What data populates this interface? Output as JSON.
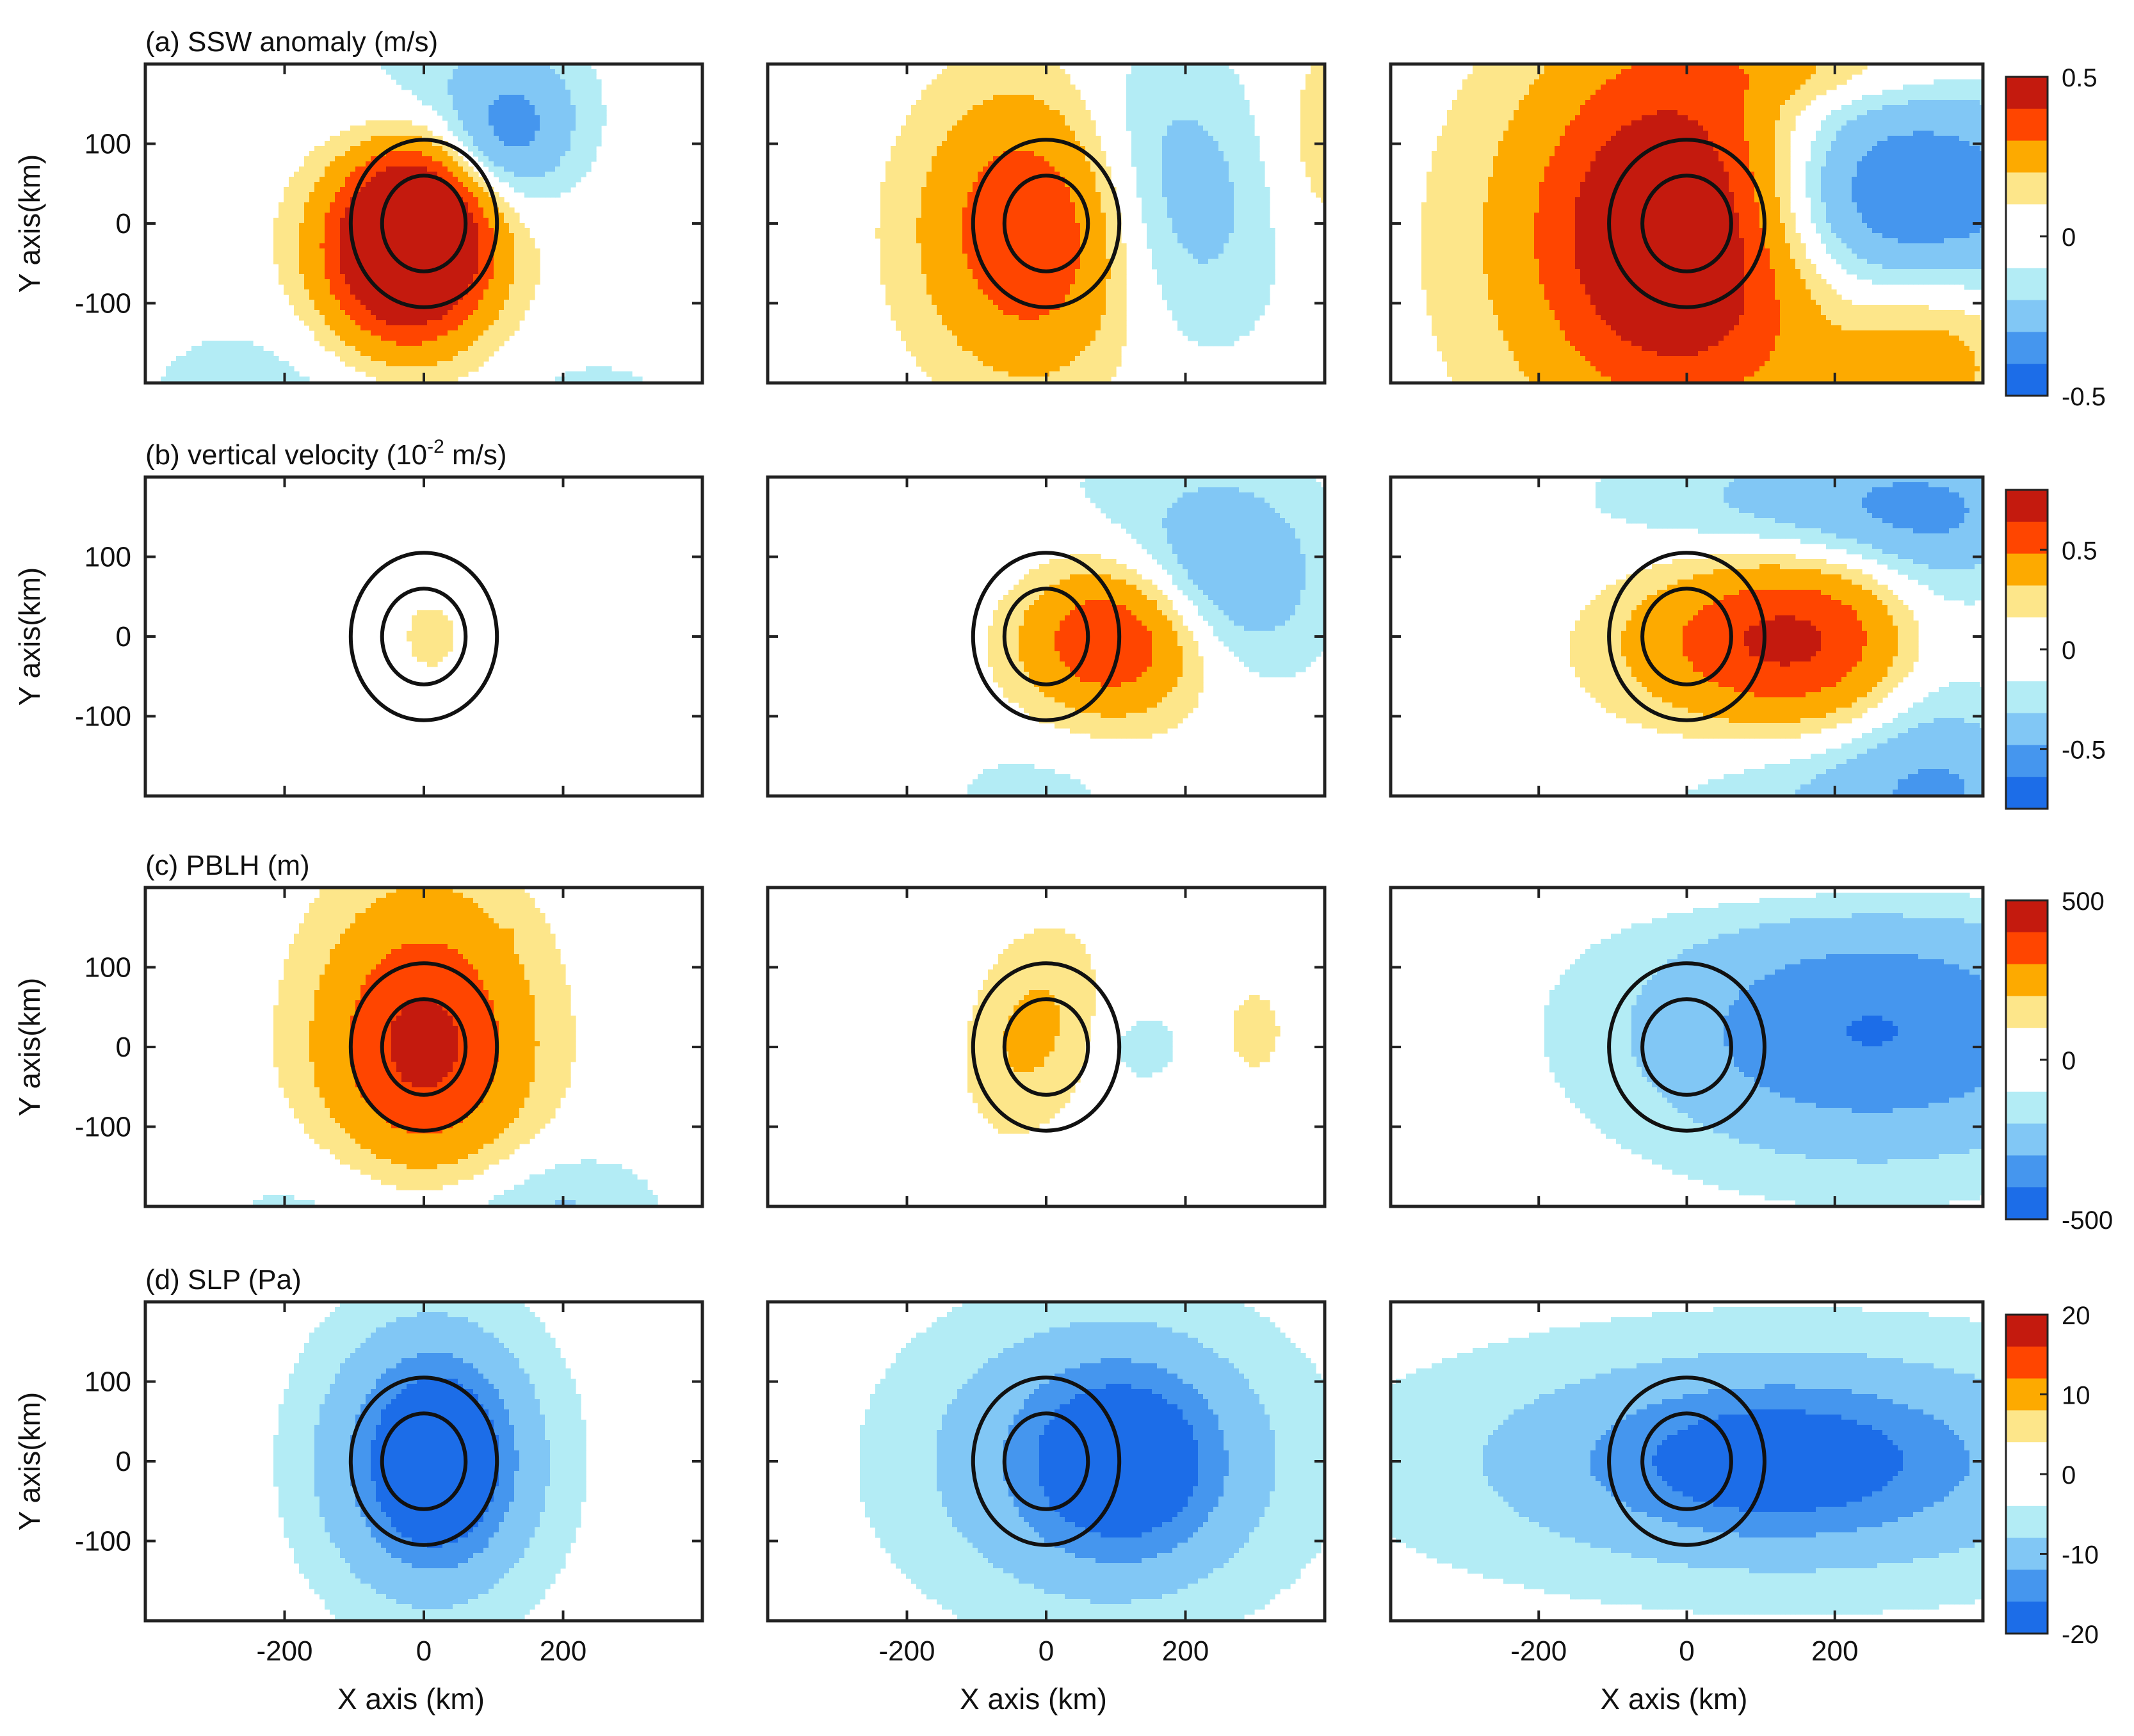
{
  "rows": [
    {
      "title": "(a) SSW anomaly (m/s)",
      "title_sup": "",
      "title_post": "",
      "colorbar": {
        "ticks": [
          {
            "label": "0.5",
            "value": 0.5
          },
          {
            "label": "0",
            "value": 0
          },
          {
            "label": "-0.5",
            "value": -0.5
          }
        ],
        "vmin": -0.5,
        "vmax": 0.5
      }
    },
    {
      "title": "(b) vertical velocity (10",
      "title_sup": "-2",
      "title_post": " m/s)",
      "colorbar": {
        "ticks": [
          {
            "label": "0.5",
            "value": 0.5
          },
          {
            "label": "0",
            "value": 0
          },
          {
            "label": "-0.5",
            "value": -0.5
          }
        ],
        "vmin": -0.8,
        "vmax": 0.8
      }
    },
    {
      "title": "(c) PBLH (m)",
      "title_sup": "",
      "title_post": "",
      "colorbar": {
        "ticks": [
          {
            "label": "500",
            "value": 500
          },
          {
            "label": "0",
            "value": 0
          },
          {
            "label": "-500",
            "value": -500
          }
        ],
        "vmin": -500,
        "vmax": 500
      }
    },
    {
      "title": "(d) SLP (Pa)",
      "title_sup": "",
      "title_post": "",
      "colorbar": {
        "ticks": [
          {
            "label": "20",
            "value": 20
          },
          {
            "label": "10",
            "value": 10
          },
          {
            "label": "0",
            "value": 0
          },
          {
            "label": "-10",
            "value": -10
          },
          {
            "label": "-20",
            "value": -20
          }
        ],
        "vmin": -20,
        "vmax": 20
      }
    }
  ],
  "columns": [
    {
      "xlim": [
        -400,
        400
      ],
      "xticks": [
        -200,
        0,
        200
      ]
    },
    {
      "xlim": [
        -400,
        400
      ],
      "xticks": [
        -200,
        0,
        200
      ]
    },
    {
      "xlim": [
        -400,
        400
      ],
      "xticks": [
        -200,
        0,
        200
      ]
    }
  ],
  "axes": {
    "ylabel": "Y axis(km)",
    "xlabel": "X axis (km)",
    "ylim": [
      -200,
      200
    ],
    "yticks": [
      {
        "label": "100",
        "value": 100
      },
      {
        "label": "0",
        "value": 0
      },
      {
        "label": "-100",
        "value": -100
      }
    ],
    "xticks": [
      {
        "label": "-200",
        "value": -200
      },
      {
        "label": "0",
        "value": 0
      },
      {
        "label": "200",
        "value": 200
      }
    ]
  },
  "rings_km": [
    60,
    105
  ],
  "colors": {
    "positive": [
      "#fde68a",
      "#fdaa00",
      "#ff4500",
      "#c41a0e"
    ],
    "negative": [
      "#b3ecf5",
      "#81c7f5",
      "#4596ee",
      "#1c6de8"
    ],
    "outline": "#111111"
  },
  "chart_data": {
    "type": "heatmap",
    "description_units": "fields in km coordinates, storm centre at (0,0)",
    "panels": [
      [
        {
          "blobs": [
            [
              -30,
              -40,
              90,
              95,
              0.42,
              -25
            ],
            [
              -10,
              -10,
              70,
              75,
              0.5,
              -25
            ],
            [
              120,
              110,
              70,
              60,
              -0.25,
              35
            ],
            [
              40,
              150,
              120,
              80,
              -0.12,
              0
            ],
            [
              -200,
              -230,
              160,
              90,
              -0.1,
              0
            ],
            [
              250,
              -230,
              90,
              50,
              -0.08,
              0
            ]
          ]
        },
        {
          "blobs": [
            [
              0,
              0,
              115,
              125,
              0.45,
              -15
            ],
            [
              150,
              40,
              110,
              130,
              -0.28,
              25
            ],
            [
              400,
              100,
              60,
              100,
              0.1,
              0
            ]
          ]
        },
        {
          "blobs": [
            [
              0,
              0,
              130,
              140,
              0.55,
              0
            ],
            [
              -30,
              -40,
              200,
              200,
              0.15,
              0
            ],
            [
              260,
              30,
              170,
              100,
              -0.45,
              0
            ],
            [
              330,
              -150,
              90,
              80,
              0.2,
              0
            ],
            [
              200,
              190,
              150,
              30,
              0.1,
              0
            ]
          ]
        }
      ],
      [
        {
          "blobs": [
            [
              10,
              0,
              35,
              40,
              0.12,
              0
            ],
            [
              130,
              10,
              10,
              20,
              -0.08,
              0
            ]
          ]
        },
        {
          "blobs": [
            [
              100,
              0,
              100,
              70,
              0.7,
              0
            ],
            [
              150,
              100,
              220,
              130,
              -0.12,
              0
            ],
            [
              250,
              70,
              90,
              80,
              -0.35,
              0
            ],
            [
              -20,
              -200,
              100,
              50,
              -0.12,
              0
            ]
          ]
        },
        {
          "blobs": [
            [
              150,
              0,
              160,
              80,
              0.75,
              0
            ],
            [
              160,
              120,
              270,
              130,
              -0.12,
              0
            ],
            [
              250,
              160,
              180,
              50,
              -0.3,
              0
            ],
            [
              330,
              -20,
              80,
              150,
              -0.3,
              0
            ],
            [
              300,
              -200,
              200,
              60,
              -0.3,
              0
            ]
          ]
        }
      ],
      [
        {
          "blobs": [
            [
              0,
              0,
              105,
              130,
              420,
              0
            ],
            [
              -50,
              -220,
              170,
              80,
              -120,
              0
            ],
            [
              200,
              -220,
              100,
              60,
              -120,
              0
            ],
            [
              120,
              140,
              5,
              5,
              80,
              0
            ]
          ]
        },
        {
          "blobs": [
            [
              -20,
              20,
              60,
              90,
              150,
              -20
            ],
            [
              140,
              0,
              40,
              35,
              -90,
              0
            ],
            [
              300,
              20,
              30,
              40,
              90,
              0
            ]
          ]
        },
        {
          "blobs": [
            [
              250,
              20,
              220,
              110,
              -380,
              0
            ],
            [
              200,
              230,
              260,
              50,
              80,
              0
            ]
          ]
        }
      ],
      [
        {
          "blobs": [
            [
              10,
              0,
              110,
              120,
              -16,
              0
            ],
            [
              20,
              0,
              50,
              60,
              -20,
              0
            ]
          ]
        },
        {
          "blobs": [
            [
              80,
              0,
              190,
              130,
              -11,
              0
            ],
            [
              110,
              0,
              80,
              70,
              -17,
              0
            ]
          ]
        },
        {
          "blobs": [
            [
              140,
              0,
              360,
              110,
              -9,
              0
            ],
            [
              120,
              0,
              150,
              60,
              -13,
              0
            ]
          ]
        }
      ]
    ]
  }
}
